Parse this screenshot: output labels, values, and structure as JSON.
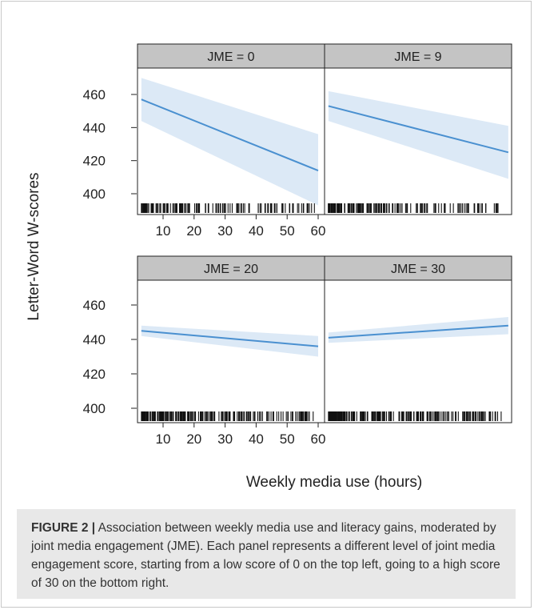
{
  "chart_data": {
    "type": "line",
    "ylabel": "Letter-Word W-scores",
    "xlabel": "Weekly media use (hours)",
    "x_ticks": [
      10,
      20,
      30,
      40,
      50,
      60
    ],
    "y_ticks": [
      400,
      420,
      440,
      460
    ],
    "xlim": [
      3,
      61
    ],
    "ylim": [
      393,
      474
    ],
    "panels": [
      {
        "label": "JME = 0",
        "x": [
          3,
          60
        ],
        "y": [
          457,
          414
        ],
        "ci_upper": [
          470,
          436
        ],
        "ci_lower": [
          444,
          393
        ]
      },
      {
        "label": "JME = 9",
        "x": [
          3,
          61
        ],
        "y": [
          453,
          425
        ],
        "ci_upper": [
          462,
          441
        ],
        "ci_lower": [
          444,
          409
        ]
      },
      {
        "label": "JME = 20",
        "x": [
          3,
          60
        ],
        "y": [
          445,
          436
        ],
        "ci_upper": [
          448,
          442
        ],
        "ci_lower": [
          442,
          430
        ]
      },
      {
        "label": "JME = 30",
        "x": [
          3,
          61
        ],
        "y": [
          441,
          448
        ],
        "ci_upper": [
          444,
          453
        ],
        "ci_lower": [
          438,
          443
        ]
      }
    ],
    "line_color": "#4a90d0",
    "ci_color": "#dce9f6",
    "strip_color": "#c4c4c4"
  },
  "caption": {
    "label": "FIGURE 2 |",
    "text": "Association between weekly media use and literacy gains, moderated by joint media engagement (JME). Each panel represents a different level of joint media engagement score, starting from a low score of 0 on the top left, going to a high score of 30 on the bottom right."
  }
}
